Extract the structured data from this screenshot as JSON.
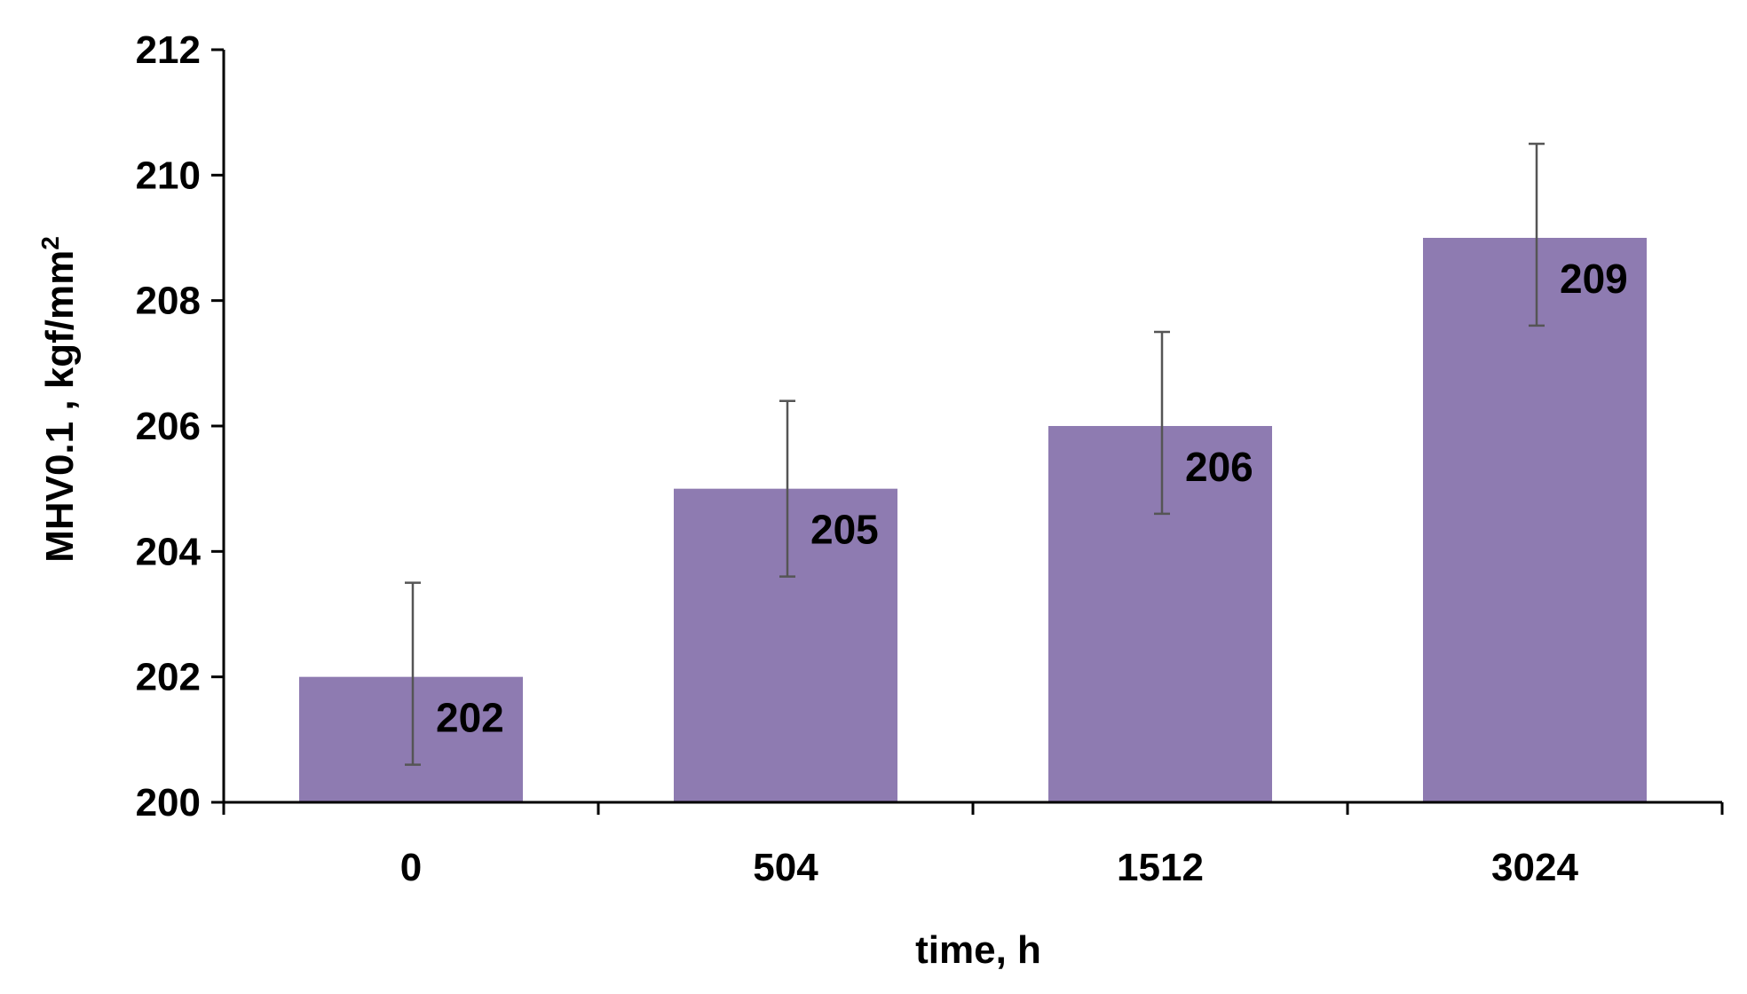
{
  "chart_data": {
    "type": "bar",
    "title": "",
    "xlabel": "time, h",
    "ylabel": "MHV0.1 , kgf/mm",
    "ylabel_superscript": "2",
    "categories": [
      "0",
      "504",
      "1512",
      "3024"
    ],
    "series": [
      {
        "values": [
          202,
          205,
          206,
          209
        ],
        "error_low": [
          200.6,
          203.6,
          204.6,
          207.6
        ],
        "error_high": [
          203.5,
          206.4,
          207.5,
          210.5
        ],
        "data_labels": [
          "202",
          "205",
          "206",
          "209"
        ],
        "color": "#8e7bb1"
      }
    ],
    "ylim": [
      200,
      212
    ],
    "yticks": [
      "200",
      "202",
      "204",
      "206",
      "208",
      "210",
      "212"
    ],
    "grid": false,
    "legend": "none"
  }
}
